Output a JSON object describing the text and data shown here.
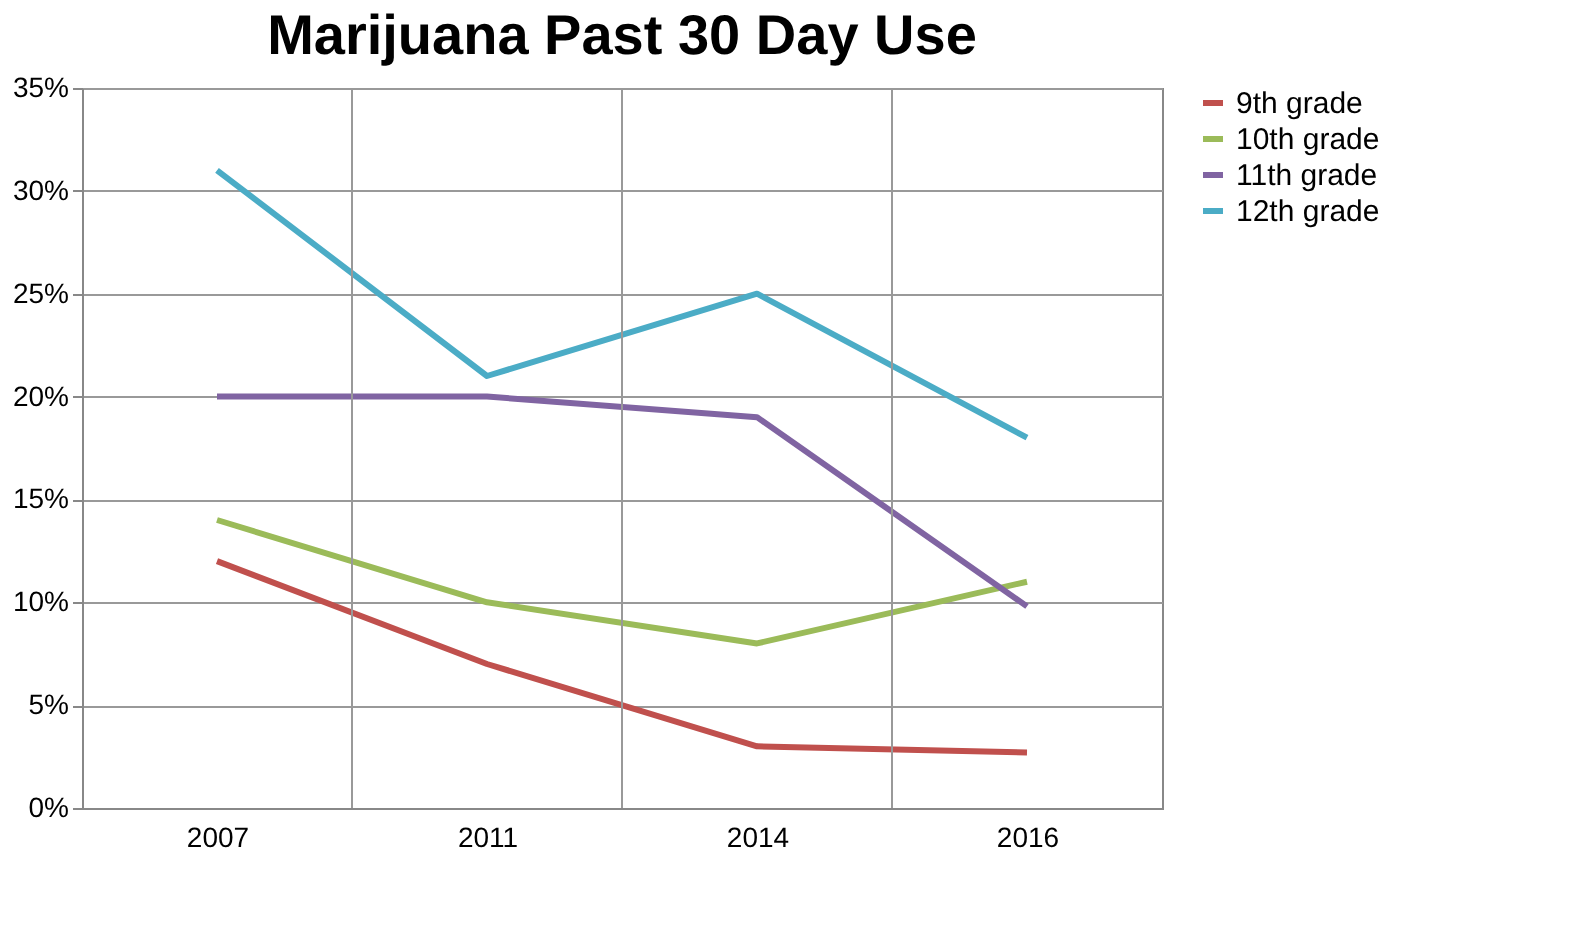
{
  "chart_data": {
    "type": "line",
    "title": "Marijuana Past 30 Day Use",
    "categories": [
      "2007",
      "2011",
      "2014",
      "2016"
    ],
    "series": [
      {
        "name": "9th grade",
        "color": "#c0504d",
        "values": [
          12,
          7,
          3,
          2.7
        ]
      },
      {
        "name": "10th grade",
        "color": "#9bbb59",
        "values": [
          14,
          10,
          8,
          11
        ]
      },
      {
        "name": "11th grade",
        "color": "#8064a2",
        "values": [
          20,
          20,
          19,
          9.8
        ]
      },
      {
        "name": "12th grade",
        "color": "#4bacc6",
        "values": [
          31,
          21,
          25,
          18
        ]
      }
    ],
    "ylim": [
      0,
      35
    ],
    "yticks": [
      {
        "value": 0,
        "label": "0%"
      },
      {
        "value": 5,
        "label": "5%"
      },
      {
        "value": 10,
        "label": "10%"
      },
      {
        "value": 15,
        "label": "15%"
      },
      {
        "value": 20,
        "label": "20%"
      },
      {
        "value": 25,
        "label": "25%"
      },
      {
        "value": 30,
        "label": "30%"
      },
      {
        "value": 35,
        "label": "35%"
      }
    ],
    "grid": true,
    "legend": "right",
    "marker": "none",
    "line_style": "solid"
  }
}
